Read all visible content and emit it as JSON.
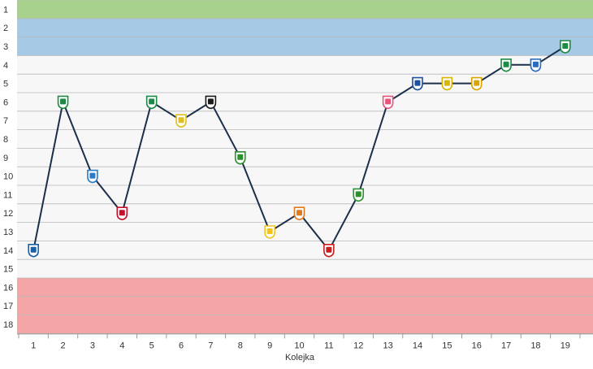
{
  "chart_data": {
    "type": "line",
    "xlabel": "Kolejka",
    "ylabel": "",
    "x": [
      "1",
      "2",
      "3",
      "4",
      "5",
      "6",
      "7",
      "8",
      "9",
      "10",
      "11",
      "12",
      "13",
      "14",
      "15",
      "16",
      "17",
      "18",
      "19"
    ],
    "y_ticks": [
      "1",
      "2",
      "3",
      "4",
      "5",
      "6",
      "7",
      "8",
      "9",
      "10",
      "11",
      "12",
      "13",
      "14",
      "15",
      "16",
      "17",
      "18"
    ],
    "ylim": [
      1,
      18
    ],
    "y_inverted": true,
    "series": [
      {
        "values": [
          14,
          6,
          10,
          12,
          6,
          7,
          6,
          9,
          13,
          12,
          14,
          11,
          6,
          5,
          5,
          5,
          4,
          4,
          3
        ]
      }
    ],
    "bands": [
      {
        "from": 1,
        "to": 1,
        "color": "#a9d18e"
      },
      {
        "from": 2,
        "to": 3,
        "color": "#a6c9e5"
      },
      {
        "from": 4,
        "to": 15,
        "color": "#f7f7f7"
      },
      {
        "from": 16,
        "to": 18,
        "color": "#f4a6a6"
      }
    ],
    "line_color": "#1c2f4a",
    "grid": true,
    "marker_icons": [
      "club-crest-blue-white",
      "club-crest-green-white",
      "club-crest-blue-stripes",
      "club-crest-red-blue",
      "club-crest-green-circle",
      "club-crest-yellow-green",
      "club-crest-black-red",
      "club-crest-green-yellow",
      "club-crest-yellow-black",
      "club-crest-orange-blue",
      "club-crest-red-black",
      "club-crest-yellow-green-shield",
      "club-crest-pink-white",
      "club-crest-blue-red",
      "club-crest-yellow-black-stripes",
      "club-crest-red-yellow-round",
      "club-crest-green-red",
      "club-crest-blue-white-m",
      "club-crest-green-white-l"
    ],
    "marker_colors": [
      "#1b5fa8",
      "#1f8a45",
      "#2a7cc7",
      "#c8102e",
      "#1e8a4a",
      "#e0c020",
      "#1a1a1a",
      "#2f8f2f",
      "#f0c419",
      "#e07a20",
      "#c81e1e",
      "#2f8f2f",
      "#e8557a",
      "#1e4fa0",
      "#d9b400",
      "#d9a400",
      "#1f8a45",
      "#2a6cc0",
      "#1f8a45"
    ]
  }
}
